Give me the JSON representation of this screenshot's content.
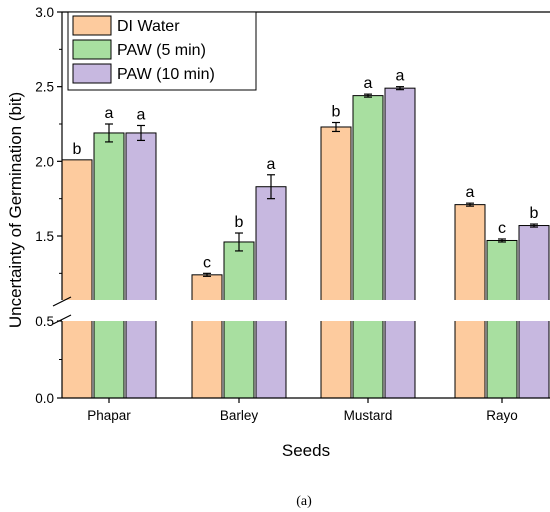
{
  "chart_data": {
    "type": "bar",
    "categories": [
      "Phapar",
      "Barley",
      "Mustard",
      "Rayo"
    ],
    "series": [
      {
        "name": "DI Water",
        "color": "#FDCB9E",
        "values": [
          2.01,
          1.24,
          2.23,
          1.71
        ],
        "errors": [
          0.0,
          0.01,
          0.03,
          0.01
        ],
        "letters": [
          "b",
          "c",
          "b",
          "a"
        ]
      },
      {
        "name": "PAW (5 min)",
        "color": "#A8DFA0",
        "values": [
          2.19,
          1.46,
          2.44,
          1.47
        ],
        "errors": [
          0.06,
          0.06,
          0.01,
          0.01
        ],
        "letters": [
          "a",
          "b",
          "a",
          "c"
        ]
      },
      {
        "name": "PAW (10 min)",
        "color": "#C7B8E0",
        "values": [
          2.19,
          1.83,
          2.49,
          1.57
        ],
        "errors": [
          0.05,
          0.08,
          0.01,
          0.01
        ],
        "letters": [
          "a",
          "a",
          "a",
          "b"
        ]
      }
    ],
    "xlabel": "Seeds",
    "ylabel": "Uncertainty of Germination (bit)",
    "ylim": [
      0,
      3.0
    ],
    "axis_break": [
      0.5,
      1.17
    ],
    "yticks_lower": [
      "0.0",
      "0.5"
    ],
    "yticks_upper": [
      "1.5",
      "2.0",
      "2.5",
      "3.0"
    ],
    "legend_position": "top-left",
    "grid": false
  },
  "caption": "(a)"
}
